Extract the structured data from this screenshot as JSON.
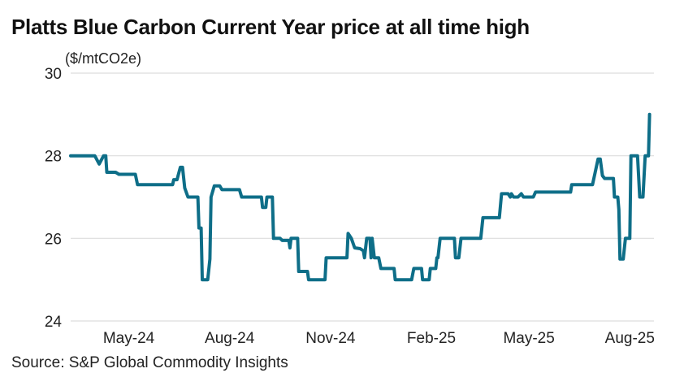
{
  "chart_data": {
    "type": "line",
    "title": "Platts Blue Carbon Current Year price at all time high",
    "ylabel": "($/mtCO2e)",
    "xlabel": "",
    "source": "Source: S&P Global Commodity Insights",
    "ylim": [
      24,
      30
    ],
    "yticks": [
      24,
      26,
      28,
      30
    ],
    "xlim": [
      "2024-03-09",
      "2025-08-23"
    ],
    "xticks": [
      {
        "date": "2024-05-01",
        "label": "May-24"
      },
      {
        "date": "2024-08-01",
        "label": "Aug-24"
      },
      {
        "date": "2024-11-01",
        "label": "Nov-24"
      },
      {
        "date": "2025-02-01",
        "label": "Feb-25"
      },
      {
        "date": "2025-05-01",
        "label": "May-25"
      },
      {
        "date": "2025-08-01",
        "label": "Aug-25"
      }
    ],
    "grid": "horizontal",
    "line_color": "#0e6e88",
    "grid_color": "#dddddd",
    "series": [
      {
        "x": [
          "2024-03-09",
          "2024-03-31",
          "2024-04-04",
          "2024-04-08",
          "2024-04-10",
          "2024-04-11",
          "2024-04-19",
          "2024-04-22",
          "2024-05-07",
          "2024-05-09",
          "2024-06-10",
          "2024-06-11",
          "2024-06-14",
          "2024-06-17",
          "2024-06-19",
          "2024-06-21",
          "2024-06-22",
          "2024-06-24",
          "2024-07-03",
          "2024-07-04",
          "2024-07-06",
          "2024-07-07",
          "2024-07-12",
          "2024-07-14",
          "2024-07-15",
          "2024-07-18",
          "2024-07-23",
          "2024-07-25",
          "2024-08-10",
          "2024-08-12",
          "2024-08-30",
          "2024-08-31",
          "2024-09-03",
          "2024-09-04",
          "2024-09-09",
          "2024-09-10",
          "2024-09-16",
          "2024-09-18",
          "2024-09-24",
          "2024-09-25",
          "2024-09-26",
          "2024-10-02",
          "2024-10-03",
          "2024-10-11",
          "2024-10-12",
          "2024-10-27",
          "2024-10-28",
          "2024-11-16",
          "2024-11-17",
          "2024-11-20",
          "2024-11-23",
          "2024-11-28",
          "2024-12-01",
          "2024-12-02",
          "2024-12-04",
          "2024-12-07",
          "2024-12-08",
          "2024-12-09",
          "2024-12-11",
          "2024-12-15",
          "2024-12-17",
          "2024-12-29",
          "2024-12-30",
          "2025-01-14",
          "2025-01-16",
          "2025-01-23",
          "2025-01-24",
          "2025-01-30",
          "2025-01-31",
          "2025-02-05",
          "2025-02-06",
          "2025-02-07",
          "2025-02-09",
          "2025-02-22",
          "2025-02-23",
          "2025-02-26",
          "2025-02-28",
          "2025-03-18",
          "2025-03-20",
          "2025-04-04",
          "2025-04-06",
          "2025-04-12",
          "2025-04-14",
          "2025-04-15",
          "2025-04-17",
          "2025-04-21",
          "2025-04-24",
          "2025-04-26",
          "2025-05-05",
          "2025-05-07",
          "2025-06-08",
          "2025-06-09",
          "2025-06-28",
          "2025-07-03",
          "2025-07-05",
          "2025-07-07",
          "2025-07-09",
          "2025-07-17",
          "2025-07-18",
          "2025-07-21",
          "2025-07-22",
          "2025-07-23",
          "2025-07-26",
          "2025-07-28",
          "2025-08-01",
          "2025-08-02",
          "2025-08-08",
          "2025-08-10",
          "2025-08-13",
          "2025-08-15",
          "2025-08-18",
          "2025-08-19"
        ],
        "values": [
          28.0,
          28.0,
          27.8,
          28.0,
          28.0,
          27.6,
          27.6,
          27.55,
          27.55,
          27.3,
          27.3,
          27.42,
          27.42,
          27.72,
          27.72,
          27.22,
          27.15,
          27.0,
          27.0,
          26.25,
          26.25,
          25.0,
          25.0,
          25.5,
          27.0,
          27.27,
          27.27,
          27.18,
          27.18,
          27.0,
          27.0,
          26.75,
          26.75,
          27.0,
          27.0,
          26.0,
          26.0,
          25.95,
          25.95,
          25.77,
          26.0,
          26.0,
          25.2,
          25.2,
          25.0,
          25.0,
          25.53,
          25.53,
          26.12,
          26.0,
          25.77,
          25.75,
          25.7,
          25.53,
          26.0,
          26.0,
          25.53,
          26.0,
          25.53,
          25.53,
          25.27,
          25.27,
          25.0,
          25.0,
          25.27,
          25.27,
          25.0,
          25.0,
          25.27,
          25.27,
          25.53,
          25.53,
          26.0,
          26.0,
          25.53,
          25.53,
          26.0,
          26.0,
          26.5,
          26.5,
          27.08,
          27.08,
          27.0,
          27.08,
          27.0,
          27.0,
          27.08,
          27.0,
          27.0,
          27.12,
          27.12,
          27.3,
          27.3,
          27.92,
          27.92,
          27.52,
          27.45,
          27.45,
          27.0,
          27.0,
          26.7,
          25.5,
          25.5,
          26.0,
          26.0,
          28.0,
          28.0,
          27.0,
          27.0,
          28.0,
          28.0,
          29.0
        ]
      }
    ]
  }
}
